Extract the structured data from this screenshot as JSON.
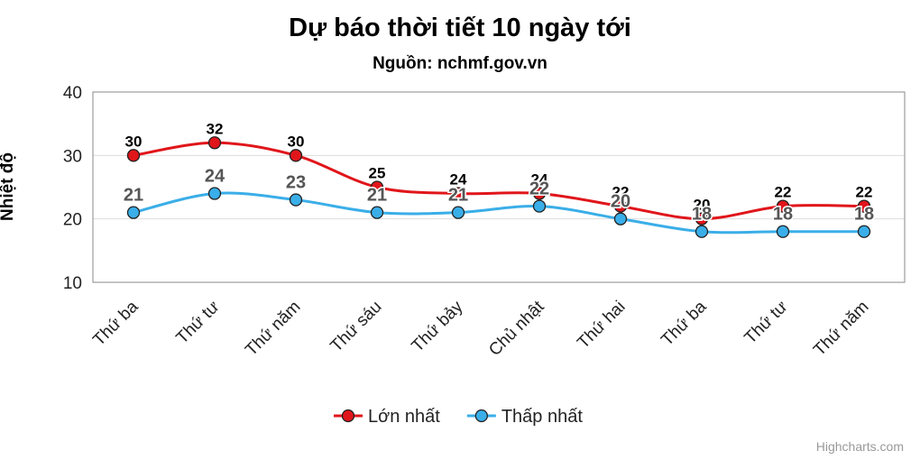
{
  "chart_data": {
    "type": "line",
    "title": "Dự báo thời tiết 10 ngày tới",
    "subtitle": "Nguồn: nchmf.gov.vn",
    "y_label": "Nhiệt độ",
    "credits": "Highcharts.com",
    "categories": [
      "Thứ ba",
      "Thứ tư",
      "Thứ năm",
      "Thứ sáu",
      "Thứ bảy",
      "Chủ nhật",
      "Thứ hai",
      "Thứ ba",
      "Thứ tư",
      "Thứ năm"
    ],
    "series": [
      {
        "name": "Lớn nhất",
        "color": "#e0161b",
        "values": [
          30,
          32,
          30,
          25,
          24,
          24,
          22,
          20,
          22,
          22
        ]
      },
      {
        "name": "Thấp nhất",
        "color": "#3aaee8",
        "values": [
          21,
          24,
          23,
          21,
          21,
          22,
          20,
          18,
          18,
          18
        ]
      }
    ],
    "ylim": [
      10,
      40
    ],
    "yticks": [
      10,
      20,
      30,
      40
    ],
    "grid": true,
    "legend": "bottom"
  }
}
